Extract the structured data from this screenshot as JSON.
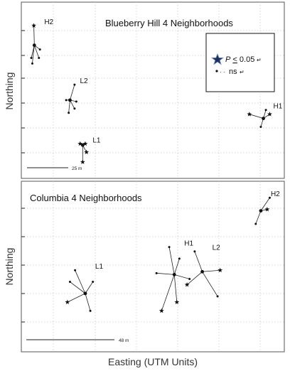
{
  "chart_data": [
    {
      "type": "scatter",
      "title": "Blueberry Hill 4 Neighborhoods",
      "ylabel": "Northing",
      "scale_bar": "25 m",
      "legend": {
        "sig_label": "P < 0.05",
        "sig_mark": "↵",
        "ns_label": "ns",
        "ns_mark": "↵"
      },
      "neighborhoods": [
        {
          "name": "H2",
          "center": [
            4,
            83
          ],
          "points": [
            [
              3.8,
              97,
              "sig"
            ],
            [
              2.8,
              74,
              "ns"
            ],
            [
              5.8,
              74,
              "ns"
            ],
            [
              6.2,
              80,
              "ns"
            ],
            [
              3.2,
              70,
              "ns"
            ]
          ]
        },
        {
          "name": "L2",
          "center": [
            18,
            44
          ],
          "points": [
            [
              19.8,
              55,
              "ns"
            ],
            [
              20.5,
              43,
              "ns"
            ],
            [
              17.5,
              35,
              "ns"
            ],
            [
              19.8,
              38,
              "ns"
            ],
            [
              16.5,
              44,
              "ns"
            ]
          ]
        },
        {
          "name": "L1",
          "center": [
            23,
            12
          ],
          "points": [
            [
              22,
              13,
              "sig"
            ],
            [
              24.5,
              7,
              "sig"
            ],
            [
              23,
              0,
              "sig"
            ],
            [
              24,
              13,
              "sig"
            ]
          ]
        },
        {
          "name": "H1",
          "center": [
            94,
            31
          ],
          "points": [
            [
              88.5,
              34,
              "sig"
            ],
            [
              96.5,
              34,
              "sig"
            ],
            [
              95,
              37,
              "ns"
            ],
            [
              93,
              25,
              "ns"
            ]
          ]
        }
      ]
    },
    {
      "type": "scatter",
      "title": "Columbia 4 Neighborhoods",
      "ylabel": "Northing",
      "xlabel": "Easting (UTM Units)",
      "scale_bar": "48 m",
      "neighborhoods": [
        {
          "name": "H2",
          "center": [
            93,
            85
          ],
          "points": [
            [
              95.5,
              86,
              "sig"
            ],
            [
              96.5,
              94,
              "ns"
            ],
            [
              91,
              76,
              "ns"
            ]
          ]
        },
        {
          "name": "L1",
          "center": [
            24,
            28
          ],
          "points": [
            [
              17,
              22,
              "sig"
            ],
            [
              18,
              36,
              "ns"
            ],
            [
              20,
              44,
              "ns"
            ],
            [
              26,
              16,
              "ns"
            ],
            [
              27,
              36,
              "ns"
            ]
          ]
        },
        {
          "name": "H1",
          "center": [
            59,
            41
          ],
          "points": [
            [
              57,
              60,
              "ns"
            ],
            [
              61,
              52,
              "ns"
            ],
            [
              54,
              16,
              "sig"
            ],
            [
              60,
              22,
              "sig"
            ],
            [
              65,
              38,
              "ns"
            ],
            [
              52,
              42,
              "ns"
            ]
          ]
        },
        {
          "name": "L2",
          "center": [
            70,
            43
          ],
          "points": [
            [
              67,
              57,
              "ns"
            ],
            [
              77,
              44,
              "sig"
            ],
            [
              76,
              26,
              "ns"
            ],
            [
              64,
              34,
              "sig"
            ]
          ]
        }
      ]
    }
  ]
}
